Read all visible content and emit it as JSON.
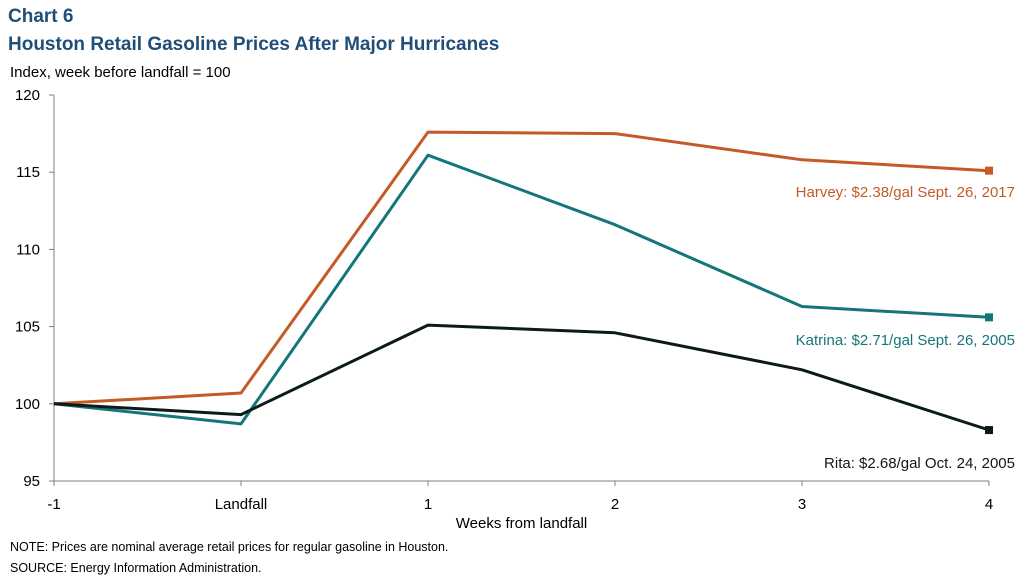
{
  "header": {
    "chart_label": "Chart 6",
    "title": "Houston Retail Gasoline Prices After Major Hurricanes"
  },
  "footer": {
    "note": "NOTE:  Prices are nominal average retail prices for regular gasoline in Houston.",
    "source": "SOURCE:  Energy Information Administration."
  },
  "chart_data": {
    "type": "line",
    "title": "Houston Retail Gasoline Prices After Major Hurricanes",
    "ylabel": "Index, week before landfall  = 100",
    "xlabel": "Weeks from landfall",
    "categories": [
      "-1",
      "Landfall",
      "1",
      "2",
      "3",
      "4"
    ],
    "ylim": [
      95,
      120
    ],
    "yticks": [
      95,
      100,
      105,
      110,
      115,
      120
    ],
    "grid": false,
    "series": [
      {
        "name": "Harvey",
        "color": "#c55a28",
        "values": [
          100,
          100.7,
          117.6,
          117.5,
          115.8,
          115.1
        ],
        "label": "Harvey:  $2.38/gal  Sept. 26, 2017"
      },
      {
        "name": "Katrina",
        "color": "#15767a",
        "values": [
          100,
          98.7,
          116.1,
          111.6,
          106.3,
          105.6
        ],
        "label": "Katrina:  $2.71/gal  Sept. 26, 2005"
      },
      {
        "name": "Rita",
        "color": "#0d1a1a",
        "values": [
          100,
          99.3,
          105.1,
          104.6,
          102.2,
          98.3
        ],
        "label": "Rita:  $2.68/gal  Oct. 24, 2005"
      }
    ]
  }
}
